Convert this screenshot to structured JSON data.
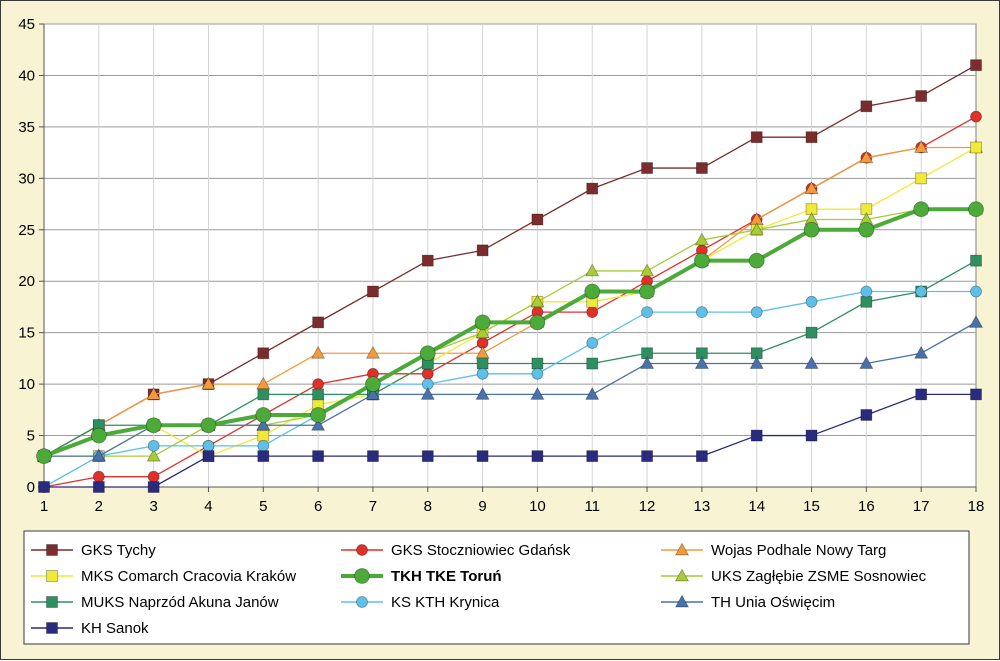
{
  "chart_data": {
    "type": "line",
    "x": [
      1,
      2,
      3,
      4,
      5,
      6,
      7,
      8,
      9,
      10,
      11,
      12,
      13,
      14,
      15,
      16,
      17,
      18
    ],
    "ylim": [
      0,
      45
    ],
    "yticks": [
      0,
      5,
      10,
      15,
      20,
      25,
      30,
      35,
      40,
      45
    ],
    "grid": true,
    "legend_position": "bottom",
    "series": [
      {
        "name": "GKS Tychy",
        "color": "#7b2c2c",
        "marker": "square",
        "bold": false,
        "values": [
          3,
          6,
          9,
          10,
          13,
          16,
          19,
          22,
          23,
          26,
          29,
          31,
          31,
          34,
          34,
          37,
          38,
          41
        ]
      },
      {
        "name": "GKS Stoczniowiec Gdańsk",
        "color": "#e0302a",
        "marker": "circle",
        "bold": false,
        "values": [
          0,
          1,
          1,
          4,
          7,
          10,
          11,
          11,
          14,
          17,
          17,
          20,
          23,
          26,
          29,
          32,
          33,
          36
        ]
      },
      {
        "name": "Wojas Podhale Nowy Targ",
        "color": "#f19a3e",
        "marker": "triangle",
        "bold": false,
        "values": [
          3,
          6,
          9,
          10,
          10,
          13,
          13,
          13,
          13,
          16,
          19,
          19,
          22,
          26,
          29,
          32,
          33,
          33
        ]
      },
      {
        "name": "MKS Comarch Cracovia Kraków",
        "color": "#f0e93a",
        "marker": "square",
        "bold": false,
        "values": [
          3,
          3,
          6,
          3,
          5,
          8,
          9,
          12,
          15,
          18,
          18,
          19,
          22,
          25,
          27,
          27,
          30,
          33
        ]
      },
      {
        "name": "TKH TKE Toruń",
        "color": "#4caa38",
        "marker": "circle",
        "bold": true,
        "values": [
          3,
          5,
          6,
          6,
          7,
          7,
          10,
          13,
          16,
          16,
          19,
          19,
          22,
          22,
          25,
          25,
          27,
          27
        ]
      },
      {
        "name": "UKS Zagłębie ZSME Sosnowiec",
        "color": "#a8cc36",
        "marker": "triangle",
        "bold": false,
        "values": [
          3,
          3,
          3,
          6,
          6,
          7,
          10,
          13,
          15,
          18,
          21,
          21,
          24,
          25,
          26,
          26,
          27,
          27
        ]
      },
      {
        "name": "MUKS Naprzód Akuna Janów",
        "color": "#2e9060",
        "marker": "square",
        "bold": false,
        "values": [
          3,
          6,
          6,
          6,
          9,
          9,
          9,
          12,
          12,
          12,
          12,
          13,
          13,
          13,
          15,
          18,
          19,
          22
        ]
      },
      {
        "name": "KS KTH Krynica",
        "color": "#5ec0e8",
        "marker": "circle",
        "bold": false,
        "values": [
          0,
          3,
          4,
          4,
          4,
          7,
          10,
          10,
          11,
          11,
          14,
          17,
          17,
          17,
          18,
          19,
          19,
          19
        ]
      },
      {
        "name": "TH Unia Oświęcim",
        "color": "#4a72aa",
        "marker": "triangle",
        "bold": false,
        "values": [
          3,
          3,
          6,
          6,
          6,
          6,
          9,
          9,
          9,
          9,
          9,
          12,
          12,
          12,
          12,
          12,
          13,
          16
        ]
      },
      {
        "name": "KH Sanok",
        "color": "#2a2a7e",
        "marker": "square",
        "bold": false,
        "values": [
          0,
          0,
          0,
          3,
          3,
          3,
          3,
          3,
          3,
          3,
          3,
          3,
          3,
          5,
          5,
          7,
          9,
          9
        ]
      }
    ]
  }
}
